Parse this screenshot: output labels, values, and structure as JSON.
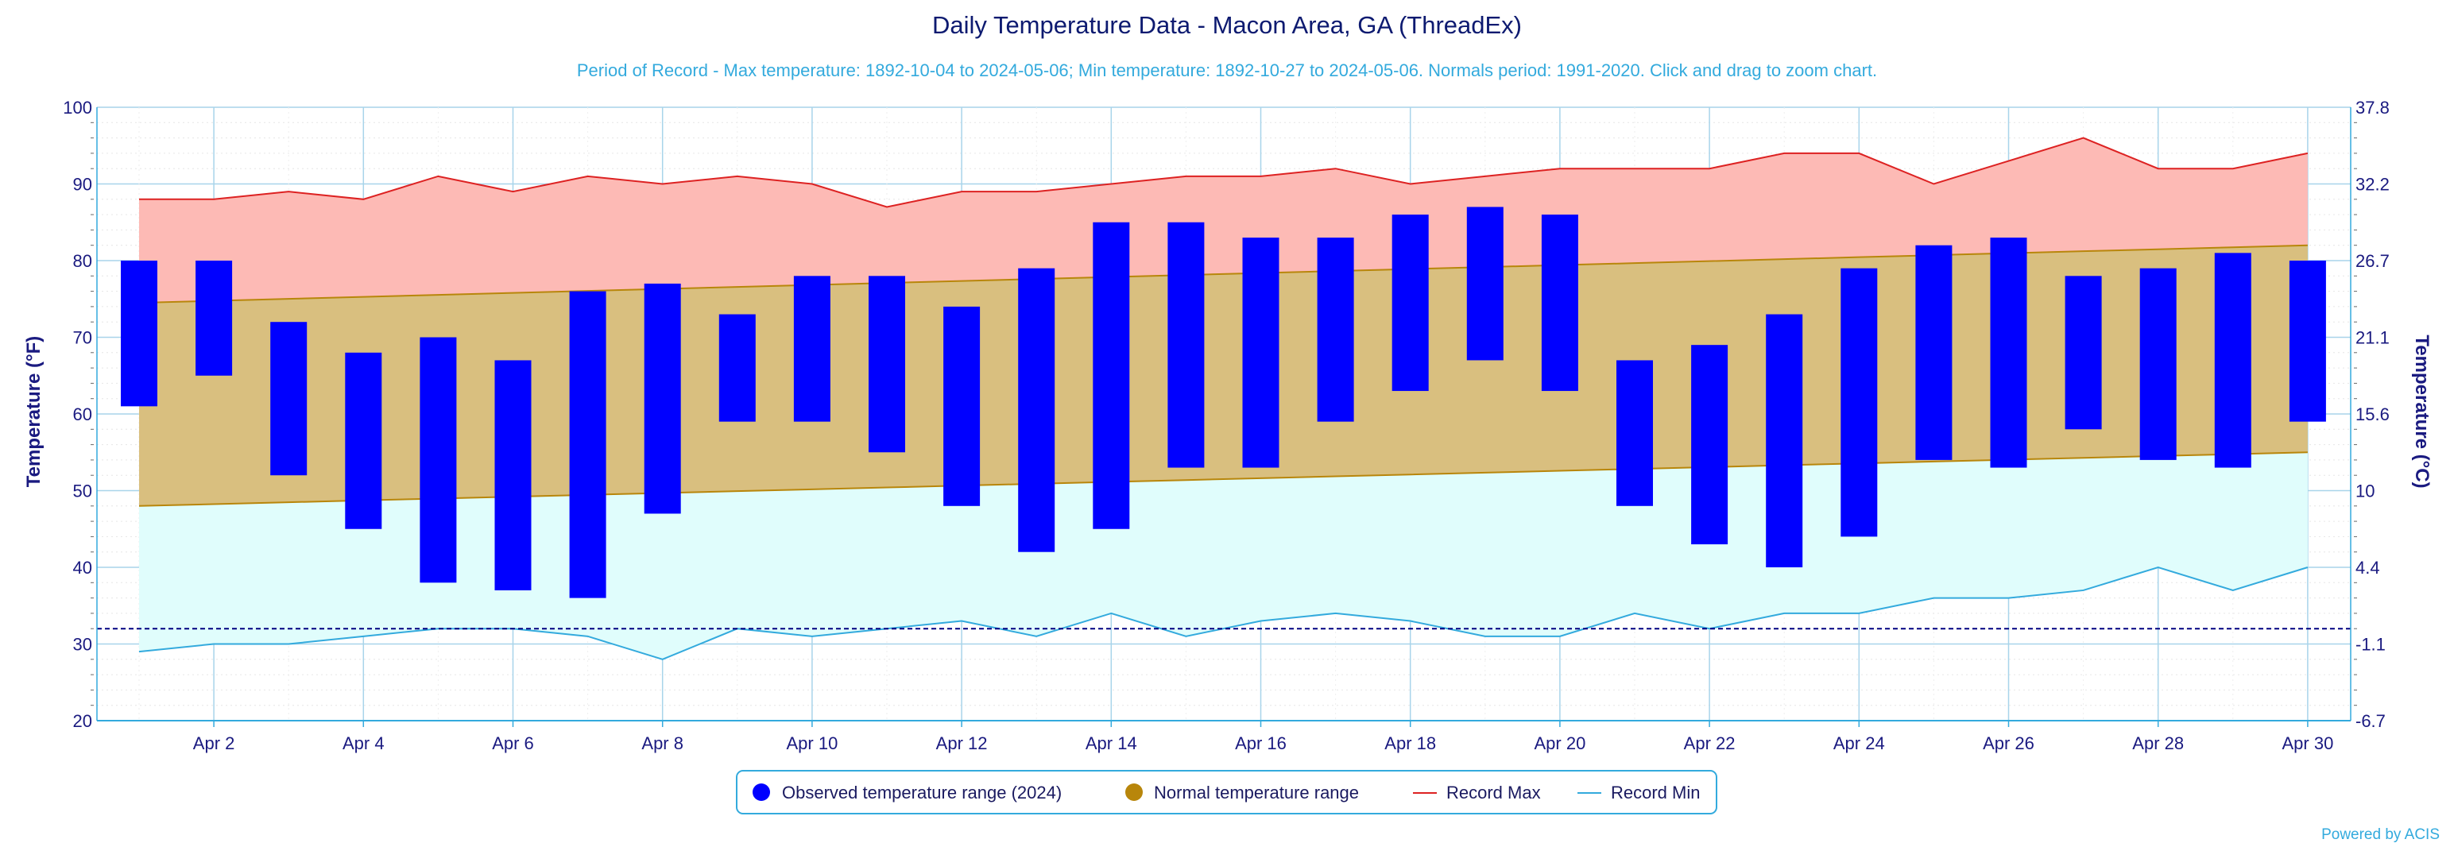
{
  "chart_data": {
    "type": "bar",
    "title": "Daily Temperature Data - Macon Area, GA (ThreadEx)",
    "subtitle": "Period of Record - Max temperature: 1892-10-04 to 2024-05-06; Min temperature: 1892-10-27 to 2024-05-06. Normals period: 1991-2020. Click and drag to zoom chart.",
    "ylabel": "Temperature (°F)",
    "y2label": "Temperature (°C)",
    "ylim": [
      20,
      100
    ],
    "yticks": [
      20,
      30,
      40,
      50,
      60,
      70,
      80,
      90,
      100
    ],
    "y2ticks": [
      "-6.7",
      "-1.1",
      "4.4",
      "10",
      "15.6",
      "21.1",
      "26.7",
      "32.2",
      "37.8"
    ],
    "freezing_line": 32,
    "x_tick_labels": [
      "Apr 2",
      "Apr 4",
      "Apr 6",
      "Apr 8",
      "Apr 10",
      "Apr 12",
      "Apr 14",
      "Apr 16",
      "Apr 18",
      "Apr 20",
      "Apr 22",
      "Apr 24",
      "Apr 26",
      "Apr 28",
      "Apr 30"
    ],
    "x_tick_days": [
      2,
      4,
      6,
      8,
      10,
      12,
      14,
      16,
      18,
      20,
      22,
      24,
      26,
      28,
      30
    ],
    "days": [
      1,
      2,
      3,
      4,
      5,
      6,
      7,
      8,
      9,
      10,
      11,
      12,
      13,
      14,
      15,
      16,
      17,
      18,
      19,
      20,
      21,
      22,
      23,
      24,
      25,
      26,
      27,
      28,
      29,
      30
    ],
    "observed_high": [
      80,
      80,
      72,
      68,
      70,
      67,
      76,
      77,
      73,
      78,
      78,
      74,
      79,
      85,
      85,
      83,
      83,
      86,
      87,
      86,
      67,
      69,
      73,
      79,
      82,
      83,
      78,
      79,
      81,
      80
    ],
    "observed_low": [
      61,
      65,
      52,
      45,
      38,
      37,
      36,
      47,
      59,
      59,
      55,
      48,
      42,
      45,
      53,
      53,
      59,
      63,
      67,
      63,
      48,
      43,
      40,
      44,
      54,
      53,
      58,
      54,
      53,
      59
    ],
    "normal_high_start": 74.5,
    "normal_high_end": 82,
    "normal_low_start": 48,
    "normal_low_end": 55,
    "record_max": [
      88,
      88,
      89,
      88,
      91,
      89,
      91,
      90,
      91,
      90,
      87,
      89,
      89,
      90,
      91,
      91,
      92,
      90,
      91,
      92,
      92,
      92,
      94,
      94,
      90,
      93,
      96,
      92,
      92,
      94
    ],
    "record_min": [
      29,
      30,
      30,
      31,
      32,
      32,
      31,
      28,
      32,
      31,
      32,
      33,
      31,
      34,
      31,
      33,
      34,
      33,
      31,
      31,
      34,
      32,
      34,
      34,
      36,
      36,
      37,
      40,
      37,
      40
    ],
    "series": [
      {
        "name": "Observed temperature range (2024)",
        "color": "#0000ff"
      },
      {
        "name": "Normal temperature range",
        "color": "#b8860b"
      },
      {
        "name": "Record Max",
        "color": "#dd2222"
      },
      {
        "name": "Record Min",
        "color": "#33aadd"
      }
    ],
    "legend_position": "bottom-center",
    "grid": true
  },
  "credit": "Powered by ACIS"
}
